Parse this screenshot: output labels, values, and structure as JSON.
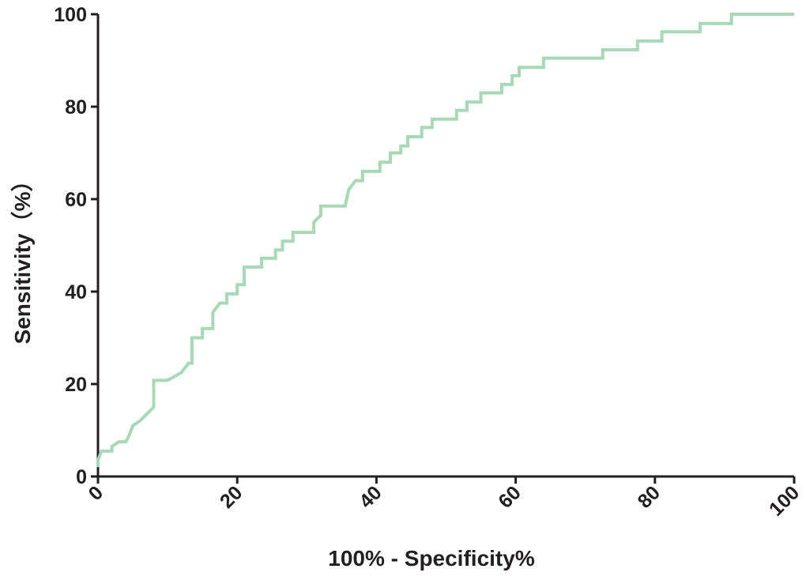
{
  "chart_data": {
    "type": "line",
    "x_label": "100%  - Specificity%",
    "y_label": "Sensitivity（%）",
    "xlim": [
      0,
      100
    ],
    "ylim": [
      0,
      100
    ],
    "xticks": [
      0,
      20,
      40,
      60,
      80,
      100
    ],
    "yticks": [
      0,
      20,
      40,
      60,
      80,
      100
    ],
    "color": "#a6dab6",
    "x": [
      0,
      0,
      0.5,
      2,
      2,
      3,
      4,
      4.5,
      5,
      6,
      7,
      8,
      8,
      8,
      10,
      12,
      13,
      13.5,
      13.5,
      15,
      15,
      16.5,
      16.5,
      17.5,
      18.5,
      18.5,
      20,
      20,
      21,
      21,
      23.5,
      23.5,
      25.5,
      25.5,
      26.5,
      26.5,
      28,
      28,
      31,
      31,
      32,
      32,
      35.5,
      36,
      37,
      38,
      38,
      40.5,
      40.5,
      42,
      42,
      43.5,
      43.5,
      44.5,
      44.5,
      46.5,
      46.5,
      48,
      48,
      51.5,
      51.5,
      53,
      53,
      55,
      55,
      58,
      58,
      59.5,
      59.5,
      60.5,
      60.5,
      64,
      64,
      72.5,
      72.5,
      77.5,
      77.5,
      81,
      81,
      86.5,
      86.5,
      91,
      91,
      100
    ],
    "values": [
      2,
      3.5,
      5.5,
      5.5,
      6.5,
      7.5,
      7.5,
      9,
      11,
      12,
      13.5,
      15,
      16,
      20.8,
      20.8,
      22.5,
      24.5,
      24.5,
      30,
      30,
      32,
      32,
      35.5,
      37.5,
      37.5,
      39.5,
      39.5,
      41.5,
      41.5,
      45.3,
      45.3,
      47.2,
      47.2,
      49,
      49,
      50.9,
      50.9,
      52.8,
      52.8,
      55,
      56.5,
      58.5,
      58.5,
      62,
      64,
      64,
      66,
      66,
      68,
      68,
      70,
      70,
      71.5,
      71.5,
      73.5,
      73.5,
      75.5,
      75.5,
      77.3,
      77.3,
      79.2,
      79.2,
      81,
      81,
      83,
      83,
      84.8,
      84.8,
      86.7,
      86.7,
      88.5,
      88.5,
      90.5,
      90.5,
      92.3,
      92.3,
      94.2,
      94.2,
      96.2,
      96.2,
      98,
      98,
      100,
      100
    ]
  }
}
